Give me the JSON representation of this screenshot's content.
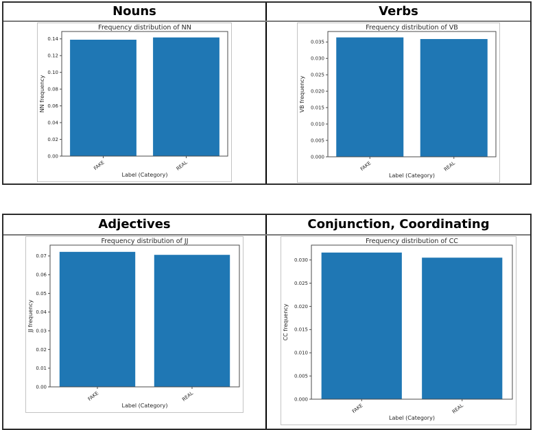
{
  "page": {
    "background": "#ffffff",
    "border_color": "#2b2b2b"
  },
  "tables": [
    {
      "headers": [
        "Nouns",
        "Verbs"
      ]
    },
    {
      "headers": [
        "Adjectives",
        "Conjunction, Coordinating"
      ]
    }
  ],
  "chart_data": [
    {
      "id": "nn",
      "type": "bar",
      "title": "Frequency distribution of NN",
      "categories": [
        "FAKE",
        "REAL"
      ],
      "values": [
        0.139,
        0.1417
      ],
      "xlabel": "Label (Category)",
      "ylabel": "NN frequency",
      "ylim": [
        0,
        0.1488
      ],
      "yticks": [
        0.0,
        0.02,
        0.04,
        0.06,
        0.08,
        0.1,
        0.12,
        0.14
      ],
      "ytick_decimals": 2,
      "bar_color": "#1f77b4",
      "grid": false,
      "legend_position": "none"
    },
    {
      "id": "vb",
      "type": "bar",
      "title": "Frequency distribution of VB",
      "categories": [
        "FAKE",
        "REAL"
      ],
      "values": [
        0.0364,
        0.0359
      ],
      "xlabel": "Label (Category)",
      "ylabel": "VB frequency",
      "ylim": [
        0,
        0.0382
      ],
      "yticks": [
        0.0,
        0.005,
        0.01,
        0.015,
        0.02,
        0.025,
        0.03,
        0.035
      ],
      "ytick_decimals": 3,
      "bar_color": "#1f77b4",
      "grid": false,
      "legend_position": "none"
    },
    {
      "id": "jj",
      "type": "bar",
      "title": "Frequency distribution of JJ",
      "categories": [
        "FAKE",
        "REAL"
      ],
      "values": [
        0.0722,
        0.0706
      ],
      "xlabel": "Label (Category)",
      "ylabel": "JJ frequency",
      "ylim": [
        0,
        0.0758
      ],
      "yticks": [
        0.0,
        0.01,
        0.02,
        0.03,
        0.04,
        0.05,
        0.06,
        0.07
      ],
      "ytick_decimals": 2,
      "bar_color": "#1f77b4",
      "grid": false,
      "legend_position": "none"
    },
    {
      "id": "cc",
      "type": "bar",
      "title": "Frequency distribution of CC",
      "categories": [
        "FAKE",
        "REAL"
      ],
      "values": [
        0.0316,
        0.0305
      ],
      "xlabel": "Label (Category)",
      "ylabel": "CC frequency",
      "ylim": [
        0,
        0.0332
      ],
      "yticks": [
        0.0,
        0.005,
        0.01,
        0.015,
        0.02,
        0.025,
        0.03
      ],
      "ytick_decimals": 3,
      "bar_color": "#1f77b4",
      "grid": false,
      "legend_position": "none"
    }
  ]
}
